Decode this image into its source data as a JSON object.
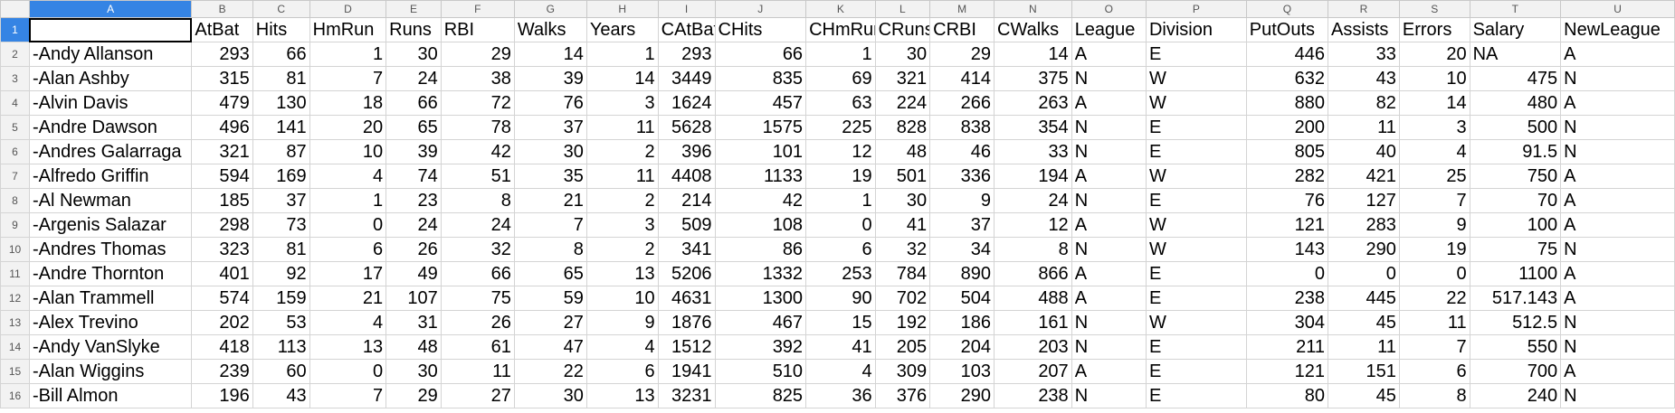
{
  "columns": [
    "A",
    "B",
    "C",
    "D",
    "E",
    "F",
    "G",
    "H",
    "I",
    "J",
    "K",
    "L",
    "M",
    "N",
    "O",
    "P",
    "Q",
    "R",
    "S",
    "T",
    "U"
  ],
  "header_row": [
    "",
    "AtBat",
    "Hits",
    "HmRun",
    "Runs",
    "RBI",
    "Walks",
    "Years",
    "CAtBat",
    "CHits",
    "CHmRun",
    "CRuns",
    "CRBI",
    "CWalks",
    "League",
    "Division",
    "PutOuts",
    "Assists",
    "Errors",
    "Salary",
    "NewLeague"
  ],
  "rows": [
    [
      "-Andy Allanson",
      "293",
      "66",
      "1",
      "30",
      "29",
      "14",
      "1",
      "293",
      "66",
      "1",
      "30",
      "29",
      "14",
      "A",
      "E",
      "446",
      "33",
      "20",
      "NA",
      "A"
    ],
    [
      "-Alan Ashby",
      "315",
      "81",
      "7",
      "24",
      "38",
      "39",
      "14",
      "3449",
      "835",
      "69",
      "321",
      "414",
      "375",
      "N",
      "W",
      "632",
      "43",
      "10",
      "475",
      "N"
    ],
    [
      "-Alvin Davis",
      "479",
      "130",
      "18",
      "66",
      "72",
      "76",
      "3",
      "1624",
      "457",
      "63",
      "224",
      "266",
      "263",
      "A",
      "W",
      "880",
      "82",
      "14",
      "480",
      "A"
    ],
    [
      "-Andre Dawson",
      "496",
      "141",
      "20",
      "65",
      "78",
      "37",
      "11",
      "5628",
      "1575",
      "225",
      "828",
      "838",
      "354",
      "N",
      "E",
      "200",
      "11",
      "3",
      "500",
      "N"
    ],
    [
      "-Andres Galarraga",
      "321",
      "87",
      "10",
      "39",
      "42",
      "30",
      "2",
      "396",
      "101",
      "12",
      "48",
      "46",
      "33",
      "N",
      "E",
      "805",
      "40",
      "4",
      "91.5",
      "N"
    ],
    [
      "-Alfredo Griffin",
      "594",
      "169",
      "4",
      "74",
      "51",
      "35",
      "11",
      "4408",
      "1133",
      "19",
      "501",
      "336",
      "194",
      "A",
      "W",
      "282",
      "421",
      "25",
      "750",
      "A"
    ],
    [
      "-Al Newman",
      "185",
      "37",
      "1",
      "23",
      "8",
      "21",
      "2",
      "214",
      "42",
      "1",
      "30",
      "9",
      "24",
      "N",
      "E",
      "76",
      "127",
      "7",
      "70",
      "A"
    ],
    [
      "-Argenis Salazar",
      "298",
      "73",
      "0",
      "24",
      "24",
      "7",
      "3",
      "509",
      "108",
      "0",
      "41",
      "37",
      "12",
      "A",
      "W",
      "121",
      "283",
      "9",
      "100",
      "A"
    ],
    [
      "-Andres Thomas",
      "323",
      "81",
      "6",
      "26",
      "32",
      "8",
      "2",
      "341",
      "86",
      "6",
      "32",
      "34",
      "8",
      "N",
      "W",
      "143",
      "290",
      "19",
      "75",
      "N"
    ],
    [
      "-Andre Thornton",
      "401",
      "92",
      "17",
      "49",
      "66",
      "65",
      "13",
      "5206",
      "1332",
      "253",
      "784",
      "890",
      "866",
      "A",
      "E",
      "0",
      "0",
      "0",
      "1100",
      "A"
    ],
    [
      "-Alan Trammell",
      "574",
      "159",
      "21",
      "107",
      "75",
      "59",
      "10",
      "4631",
      "1300",
      "90",
      "702",
      "504",
      "488",
      "A",
      "E",
      "238",
      "445",
      "22",
      "517.143",
      "A"
    ],
    [
      "-Alex Trevino",
      "202",
      "53",
      "4",
      "31",
      "26",
      "27",
      "9",
      "1876",
      "467",
      "15",
      "192",
      "186",
      "161",
      "N",
      "W",
      "304",
      "45",
      "11",
      "512.5",
      "N"
    ],
    [
      "-Andy VanSlyke",
      "418",
      "113",
      "13",
      "48",
      "61",
      "47",
      "4",
      "1512",
      "392",
      "41",
      "205",
      "204",
      "203",
      "N",
      "E",
      "211",
      "11",
      "7",
      "550",
      "N"
    ],
    [
      "-Alan Wiggins",
      "239",
      "60",
      "0",
      "30",
      "11",
      "22",
      "6",
      "1941",
      "510",
      "4",
      "309",
      "103",
      "207",
      "A",
      "E",
      "121",
      "151",
      "6",
      "700",
      "A"
    ],
    [
      "-Bill Almon",
      "196",
      "43",
      "7",
      "29",
      "27",
      "30",
      "13",
      "3231",
      "825",
      "36",
      "376",
      "290",
      "238",
      "N",
      "E",
      "80",
      "45",
      "8",
      "240",
      "N"
    ]
  ]
}
